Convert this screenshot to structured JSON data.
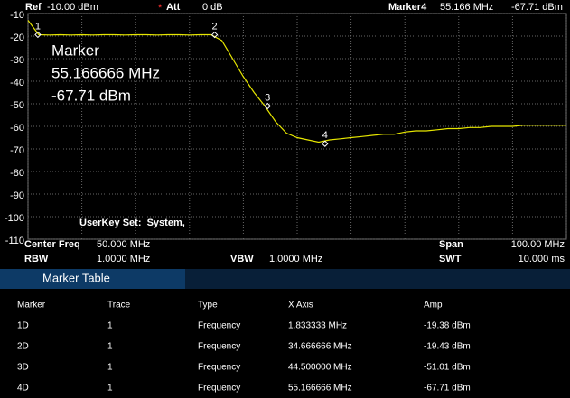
{
  "header": {
    "ref_label": "Ref",
    "ref_value": "-10.00 dBm",
    "att_flag": "*",
    "att_label": "Att",
    "att_value": "0 dB",
    "marker_label": "Marker4",
    "marker_freq": "55.166 MHz",
    "marker_amp": "-67.71 dBm"
  },
  "chart_data": {
    "type": "line",
    "x": [
      0,
      2,
      4,
      6,
      8,
      10,
      12,
      14,
      16,
      18,
      20,
      22,
      24,
      26,
      28,
      30,
      32,
      34,
      36,
      38,
      40,
      42,
      44,
      46,
      48,
      50,
      52,
      54,
      56,
      58,
      60,
      62,
      64,
      66,
      68,
      70,
      72,
      74,
      76,
      78,
      80,
      82,
      84,
      86,
      88,
      90,
      92,
      94,
      96,
      98,
      100
    ],
    "series": [
      {
        "color": "#e6e600",
        "values": [
          -13,
          -19.4,
          -19.5,
          -19.4,
          -19.5,
          -19.4,
          -19.5,
          -19.4,
          -19.4,
          -19.5,
          -19.4,
          -19.4,
          -19.5,
          -19.4,
          -19.4,
          -19.5,
          -19.4,
          -19.4,
          -22,
          -30,
          -38,
          -45,
          -51,
          -58,
          -63,
          -65,
          -66,
          -67,
          -66,
          -65.5,
          -65,
          -64.5,
          -64,
          -63.5,
          -63.5,
          -62.5,
          -62,
          -62,
          -61.5,
          -61,
          -61,
          -60.5,
          -60.5,
          -60,
          -60,
          -60,
          -59.5,
          -59.5,
          -59.5,
          -59.5,
          -59.5
        ]
      }
    ],
    "xlim": [
      0,
      100
    ],
    "ylim": [
      -110,
      -10
    ],
    "xticks": [
      0,
      10,
      20,
      30,
      40,
      50,
      60,
      70,
      80,
      90,
      100
    ],
    "yticks": [
      -10,
      -20,
      -30,
      -40,
      -50,
      -60,
      -70,
      -80,
      -90,
      -100,
      -110
    ],
    "grid": true,
    "markers": {
      "labels": [
        "1",
        "2",
        "3",
        "4"
      ],
      "x": [
        1.833333,
        34.666666,
        44.5,
        55.166666
      ],
      "values": [
        -19.38,
        -19.43,
        -51.01,
        -67.71
      ]
    }
  },
  "marker_box": {
    "title": "Marker",
    "freq": "55.166666 MHz",
    "amp": "-67.71 dBm"
  },
  "userkey": "UserKey Set:  System,",
  "footer": {
    "center_freq_label": "Center Freq",
    "center_freq": "50.000 MHz",
    "rbw_label": "RBW",
    "rbw": "1.0000 MHz",
    "vbw_label": "VBW",
    "vbw": "1.0000 MHz",
    "span_label": "Span",
    "span": "100.00 MHz",
    "swt_label": "SWT",
    "swt": "10.000 ms"
  },
  "marker_table": {
    "title": "Marker Table",
    "columns": [
      "Marker",
      "Trace",
      "Type",
      "X Axis",
      "Amp"
    ],
    "rows": [
      [
        "1D",
        "1",
        "Frequency",
        "1.833333 MHz",
        "-19.38 dBm"
      ],
      [
        "2D",
        "1",
        "Frequency",
        "34.666666 MHz",
        "-19.43 dBm"
      ],
      [
        "3D",
        "1",
        "Frequency",
        "44.500000 MHz",
        "-51.01 dBm"
      ],
      [
        "4D",
        "1",
        "Frequency",
        "55.166666 MHz",
        "-67.71 dBm"
      ]
    ]
  }
}
